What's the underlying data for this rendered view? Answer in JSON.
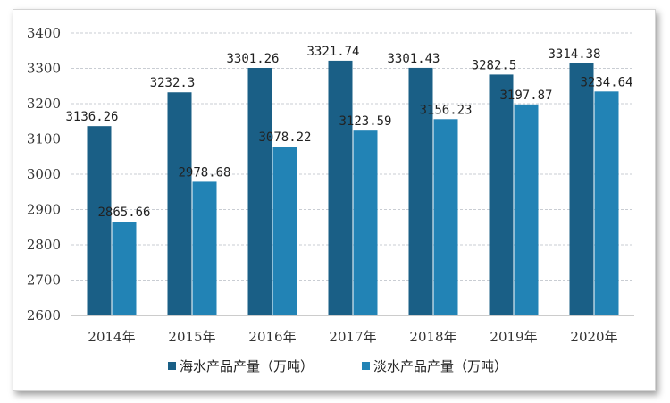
{
  "chart_data": {
    "type": "bar",
    "categories": [
      "2014年",
      "2015年",
      "2016年",
      "2017年",
      "2018年",
      "2019年",
      "2020年"
    ],
    "series": [
      {
        "name": "海水产品产量（万吨）",
        "values": [
          3136.26,
          3232.3,
          3301.26,
          3321.74,
          3301.43,
          3282.5,
          3314.38
        ],
        "color": "#1a5f86"
      },
      {
        "name": "淡水产品产量（万吨）",
        "values": [
          2865.66,
          2978.68,
          3078.22,
          3123.59,
          3156.23,
          3197.87,
          3234.64
        ],
        "color": "#2283b5"
      }
    ],
    "data_labels": [
      [
        "3136.26",
        "3232.3",
        "3301.26",
        "3321.74",
        "3301.43",
        "3282.5",
        "3314.38"
      ],
      [
        "2865.66",
        "2978.68",
        "3078.22",
        "3123.59",
        "3156.23",
        "3197.87",
        "3234.64"
      ]
    ],
    "yticks": [
      "2600",
      "2700",
      "2800",
      "2900",
      "3000",
      "3100",
      "3200",
      "3300",
      "3400"
    ],
    "ylim": [
      2600,
      3400
    ],
    "grid": true,
    "grid_style": "horizontal dashed",
    "legend_position": "bottom",
    "title": "",
    "xlabel": "",
    "ylabel": ""
  }
}
